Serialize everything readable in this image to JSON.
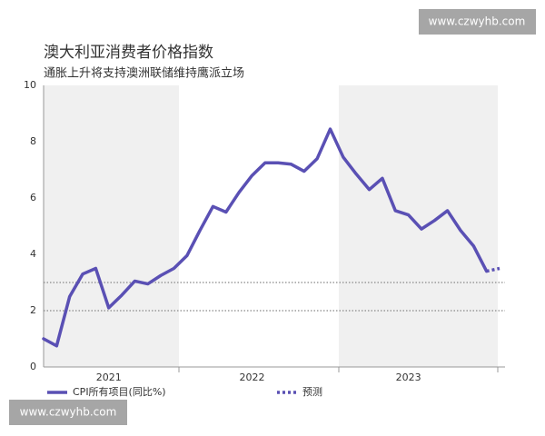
{
  "chart_data": {
    "type": "line",
    "title": "澳大利亚消费者价格指数",
    "subtitle": "通胀上升将支持澳洲联储维持鹰派立场",
    "categories": [
      null,
      null,
      null,
      null,
      null,
      "2021",
      null,
      null,
      null,
      null,
      null,
      null,
      null,
      null,
      null,
      null,
      "2022",
      null,
      null,
      null,
      null,
      null,
      null,
      null,
      null,
      null,
      null,
      null,
      "2023",
      null,
      null,
      null,
      null,
      null,
      null,
      null
    ],
    "series": [
      {
        "name": "CPI所有项目(同比%)",
        "color": "#5a50b4",
        "style": "solid",
        "values": [
          1.0,
          0.75,
          2.5,
          3.3,
          3.5,
          2.1,
          2.55,
          3.05,
          2.95,
          3.25,
          3.5,
          3.95,
          4.85,
          5.7,
          5.5,
          6.2,
          6.8,
          7.25,
          7.25,
          7.2,
          6.95,
          7.4,
          8.45,
          7.45,
          6.85,
          6.3,
          6.7,
          5.55,
          5.4,
          4.9,
          5.2,
          5.55,
          4.85,
          4.3,
          3.4,
          null
        ]
      },
      {
        "name": "预测",
        "color": "#5a50b4",
        "style": "dotted",
        "values": [
          null,
          null,
          null,
          null,
          null,
          null,
          null,
          null,
          null,
          null,
          null,
          null,
          null,
          null,
          null,
          null,
          null,
          null,
          null,
          null,
          null,
          null,
          null,
          null,
          null,
          null,
          null,
          null,
          null,
          null,
          null,
          null,
          null,
          null,
          3.4,
          3.5
        ]
      }
    ],
    "ylim": [
      0,
      10
    ],
    "yticks": [
      0,
      2,
      4,
      6,
      8,
      10
    ],
    "reference_lines": [
      2,
      3
    ]
  },
  "watermarks": [
    "www.czwyhb.com",
    "www.czwyhb.com"
  ]
}
